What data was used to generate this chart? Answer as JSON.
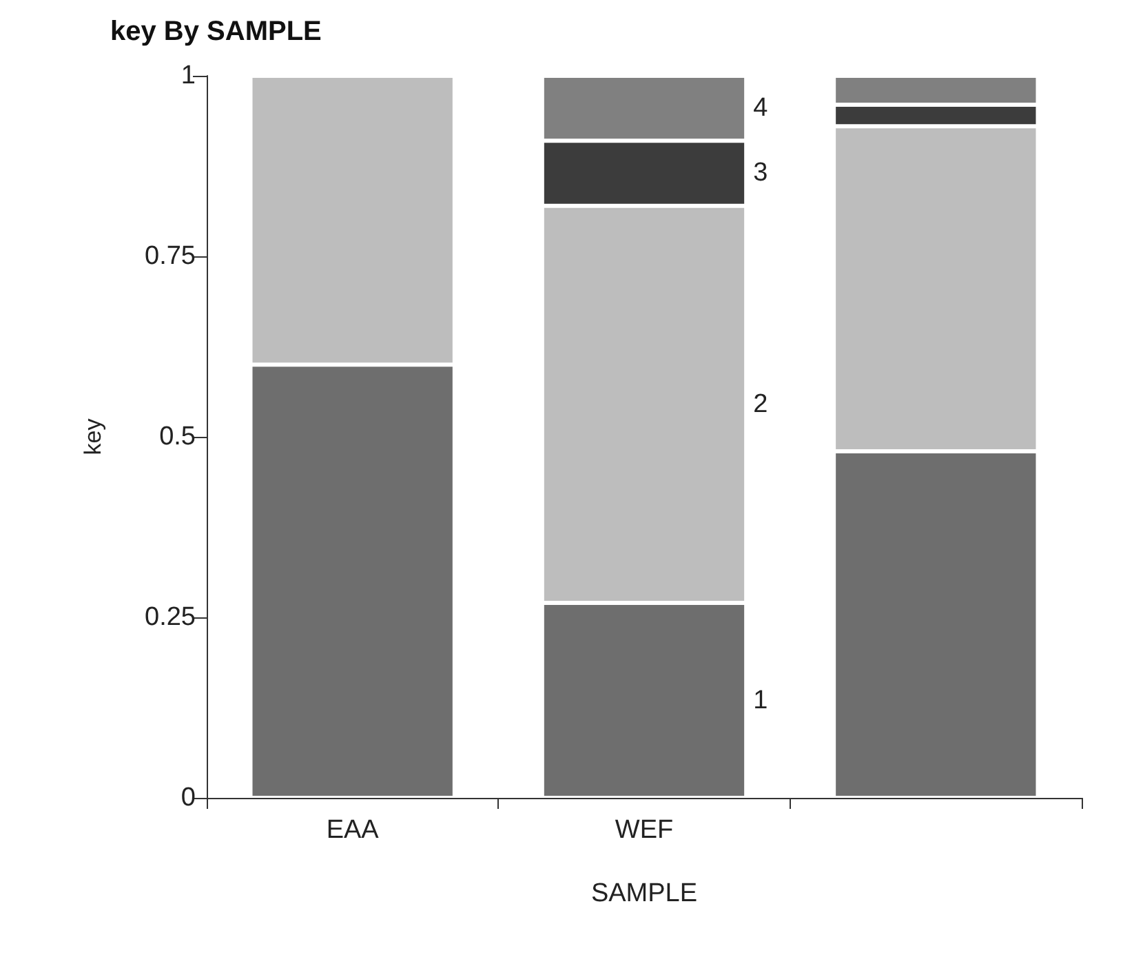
{
  "chart_data": {
    "type": "bar",
    "title": "key By SAMPLE",
    "xlabel": "SAMPLE",
    "ylabel": "key",
    "categories": [
      "EAA",
      "WEF",
      null
    ],
    "series": [
      {
        "name": "1",
        "color": "#6e6e6e",
        "values": [
          0.6,
          0.27,
          0.48
        ]
      },
      {
        "name": "2",
        "color": "#bdbdbd",
        "values": [
          0.4,
          0.55,
          0.45
        ]
      },
      {
        "name": "3",
        "color": "#3c3c3c",
        "values": [
          null,
          0.09,
          0.03
        ]
      },
      {
        "name": "4",
        "color": "#808080",
        "values": [
          null,
          0.09,
          0.04
        ]
      }
    ],
    "stacked": true,
    "ylim": [
      0,
      1
    ],
    "yticks": [
      0,
      0.25,
      0.5,
      0.75,
      1
    ],
    "grid": false,
    "legend": false
  }
}
